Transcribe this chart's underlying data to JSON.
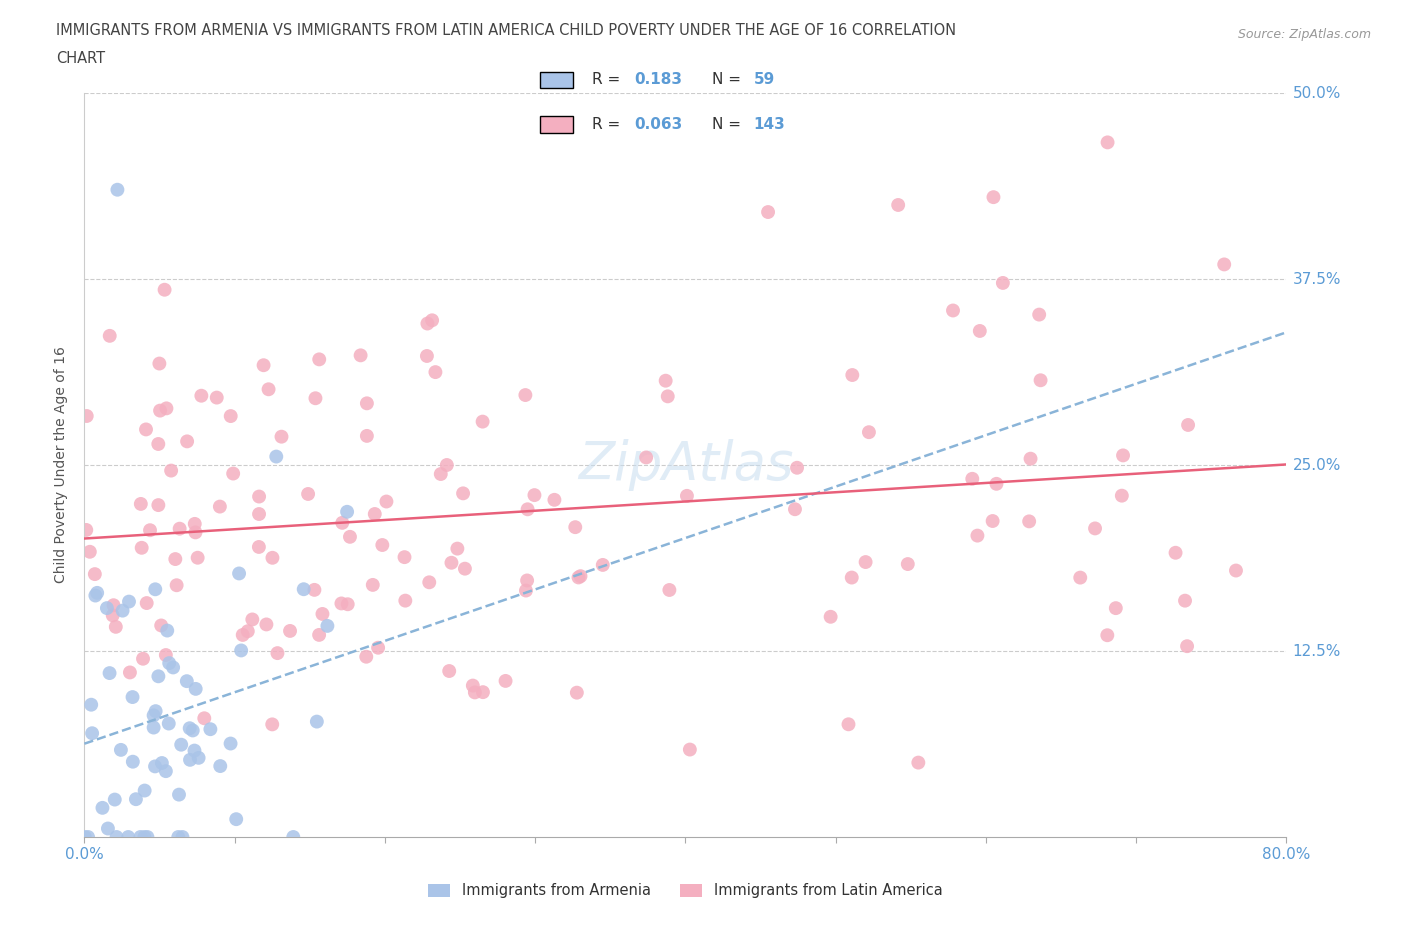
{
  "title_line1": "IMMIGRANTS FROM ARMENIA VS IMMIGRANTS FROM LATIN AMERICA CHILD POVERTY UNDER THE AGE OF 16 CORRELATION",
  "title_line2": "CHART",
  "source": "Source: ZipAtlas.com",
  "ylabel": "Child Poverty Under the Age of 16",
  "xlim": [
    0.0,
    0.8
  ],
  "ylim": [
    0.0,
    0.5
  ],
  "yticks": [
    0.0,
    0.125,
    0.25,
    0.375,
    0.5
  ],
  "yticklabels_right": [
    "",
    "12.5%",
    "25.0%",
    "37.5%",
    "50.0%"
  ],
  "R_armenia": 0.183,
  "N_armenia": 59,
  "R_latin": 0.063,
  "N_latin": 143,
  "armenia_color": "#aac4e8",
  "latin_color": "#f4afc0",
  "armenia_line_color": "#8ab4d8",
  "latin_line_color": "#e8607a",
  "legend_label_armenia": "Immigrants from Armenia",
  "legend_label_latin": "Immigrants from Latin America",
  "watermark": "ZipAtlas",
  "background_color": "#ffffff",
  "grid_color": "#cccccc",
  "tick_label_color": "#5b9bd5",
  "title_color": "#444444"
}
